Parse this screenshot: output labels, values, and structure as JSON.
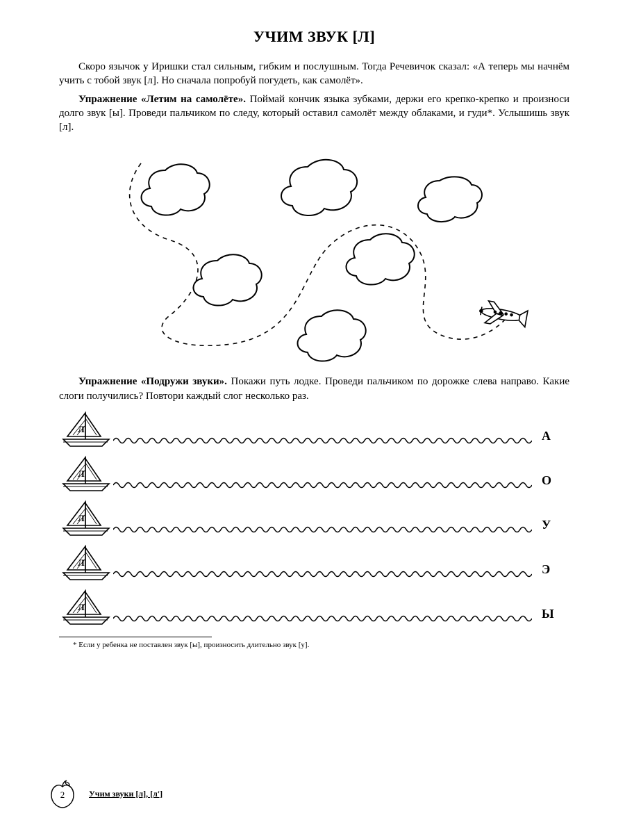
{
  "title": "УЧИМ ЗВУК [Л]",
  "intro": "Скоро язычок у Иришки стал сильным, гибким и послушным. Тогда Речевичок сказал: «А теперь мы начнём учить с тобой звук [л]. Но сначала попробуй погудеть, как самолёт».",
  "exercise1_lead": "Упражнение «Летим на самолёте».",
  "exercise1_body": " Поймай кончик языка зубками, держи его крепко-крепко и произноси долго звук [ы]. Проведи пальчиком по следу, который оставил самолёт между облаками, и гуди*. Услышишь звук [л].",
  "exercise2_lead": "Упражнение «Подружи звуки».",
  "exercise2_body": " Покажи путь лодке. Проведи пальчиком по дорожке слева направо. Какие слоги получились? Повтори каждый слог несколько раз.",
  "boats": {
    "sail_letter": "Л",
    "rows": [
      {
        "end": "А"
      },
      {
        "end": "О"
      },
      {
        "end": "У"
      },
      {
        "end": "Э"
      },
      {
        "end": "Ы"
      }
    ]
  },
  "footnote": "* Если у ребенка не поставлен звук [ы], произносить длительно звук [у].",
  "footer": {
    "page_number": "2",
    "section": "Учим звуки [л], [л']"
  },
  "style": {
    "stroke": "#000000",
    "dash": "5,5",
    "bg": "#ffffff"
  }
}
